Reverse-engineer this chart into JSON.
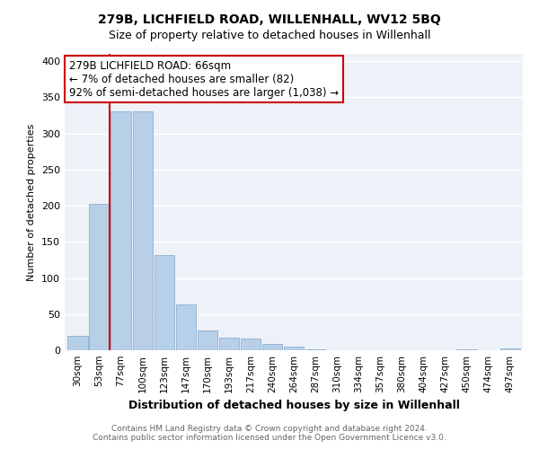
{
  "title": "279B, LICHFIELD ROAD, WILLENHALL, WV12 5BQ",
  "subtitle": "Size of property relative to detached houses in Willenhall",
  "xlabel": "Distribution of detached houses by size in Willenhall",
  "ylabel": "Number of detached properties",
  "bar_labels": [
    "30sqm",
    "53sqm",
    "77sqm",
    "100sqm",
    "123sqm",
    "147sqm",
    "170sqm",
    "193sqm",
    "217sqm",
    "240sqm",
    "264sqm",
    "287sqm",
    "310sqm",
    "334sqm",
    "357sqm",
    "380sqm",
    "404sqm",
    "427sqm",
    "450sqm",
    "474sqm",
    "497sqm"
  ],
  "bar_values": [
    20,
    202,
    330,
    330,
    132,
    63,
    27,
    17,
    16,
    9,
    5,
    1,
    0,
    0,
    0,
    0,
    0,
    0,
    1,
    0,
    2
  ],
  "bar_color": "#b8cfe8",
  "bar_edge_color": "#8aafd4",
  "highlight_color": "#cc0000",
  "annotation_title": "279B LICHFIELD ROAD: 66sqm",
  "annotation_line1": "← 7% of detached houses are smaller (82)",
  "annotation_line2": "92% of semi-detached houses are larger (1,038) →",
  "annotation_box_color": "#ffffff",
  "annotation_box_edge": "#cc0000",
  "ylim": [
    0,
    410
  ],
  "yticks": [
    0,
    50,
    100,
    150,
    200,
    250,
    300,
    350,
    400
  ],
  "footer_line1": "Contains HM Land Registry data © Crown copyright and database right 2024.",
  "footer_line2": "Contains public sector information licensed under the Open Government Licence v3.0.",
  "bg_color": "#eef2f8",
  "grid_color": "#ffffff",
  "highlight_bar_index": 1
}
